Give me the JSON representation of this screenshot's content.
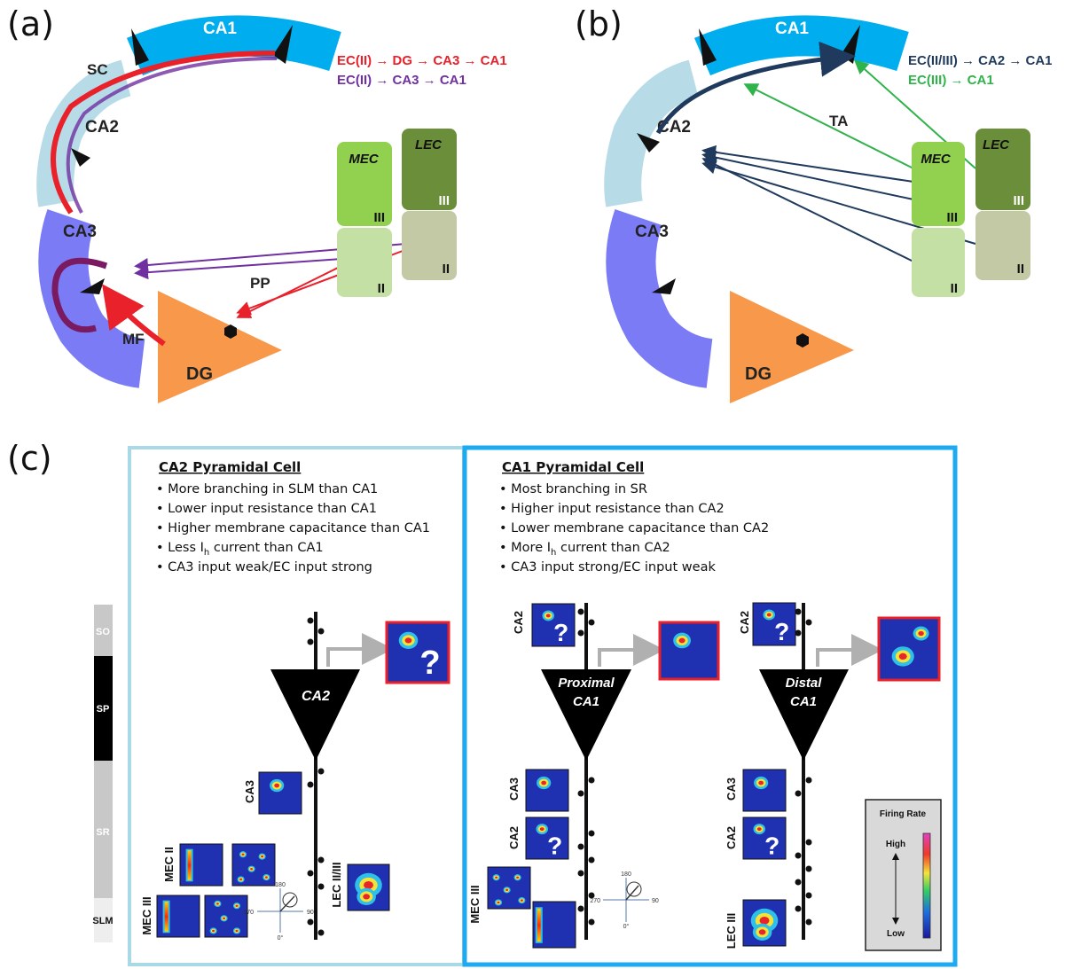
{
  "panels": {
    "a": "(a)",
    "b": "(b)",
    "c": "(c)"
  },
  "regions": {
    "ca1": "CA1",
    "ca2": "CA2",
    "ca3": "CA3",
    "dg": "DG",
    "mec": "MEC",
    "lec": "LEC",
    "layer_ii": "II",
    "layer_iii": "III"
  },
  "pathways": {
    "sc": "SC",
    "pp": "PP",
    "mf": "MF",
    "ta": "TA"
  },
  "legend_a": {
    "red": "EC(II) → DG → CA3 → CA1",
    "purple": "EC(II) → CA3 → CA1"
  },
  "legend_b": {
    "navy": "EC(II/III) → CA2 → CA1",
    "green": "EC(III) → CA1"
  },
  "colors": {
    "ca1": "#00aeef",
    "ca2": "#b7dce8",
    "ca3": "#7b7cf5",
    "dg": "#f7984a",
    "mec_iii": "#92d050",
    "mec_ii": "#c5e0a5",
    "lec_iii": "#6b8e3a",
    "lec_ii": "#c3c9a4",
    "red": "#e8212b",
    "purple": "#7030a0",
    "navy": "#1f3a5c",
    "green": "#2fb34a",
    "ca2_box": "#a9d8e6",
    "ca1_box": "#1eaaf0"
  },
  "layers": [
    "SO",
    "SP",
    "SR",
    "SLM"
  ],
  "ca2_box": {
    "title": "CA2 Pyramidal Cell",
    "bullets": [
      "More branching in SLM than CA1",
      "Lower input resistance than CA1",
      "Higher membrane capacitance than CA1",
      "Less I",
      "CA3 input weak/EC input strong"
    ],
    "bullet4_sub": "h",
    "bullet4_rest": " current than CA1",
    "cell": "CA2",
    "inputs": {
      "ca3": "CA3",
      "mec2": "MEC II",
      "mec3": "MEC III",
      "lec": "LEC II/III"
    }
  },
  "ca1_box": {
    "title": "CA1 Pyramidal Cell",
    "bullets": [
      "Most branching in SR",
      "Higher input resistance than CA2",
      "Lower membrane capacitance than CA2",
      "More I",
      "CA3 input strong/EC input weak"
    ],
    "bullet4_sub": "h",
    "bullet4_rest": " current than CA2",
    "proximal": [
      "Proximal",
      "CA1"
    ],
    "distal": [
      "Distal",
      "CA1"
    ],
    "inputs": {
      "ca2": "CA2",
      "ca3": "CA3",
      "mec3": "MEC III",
      "lec3": "LEC III"
    }
  },
  "compass": {
    "n": "180",
    "e": "90",
    "s": "0°",
    "w": "270"
  },
  "question": "?",
  "firing_rate": {
    "title": "Firing Rate",
    "high": "High",
    "low": "Low"
  }
}
